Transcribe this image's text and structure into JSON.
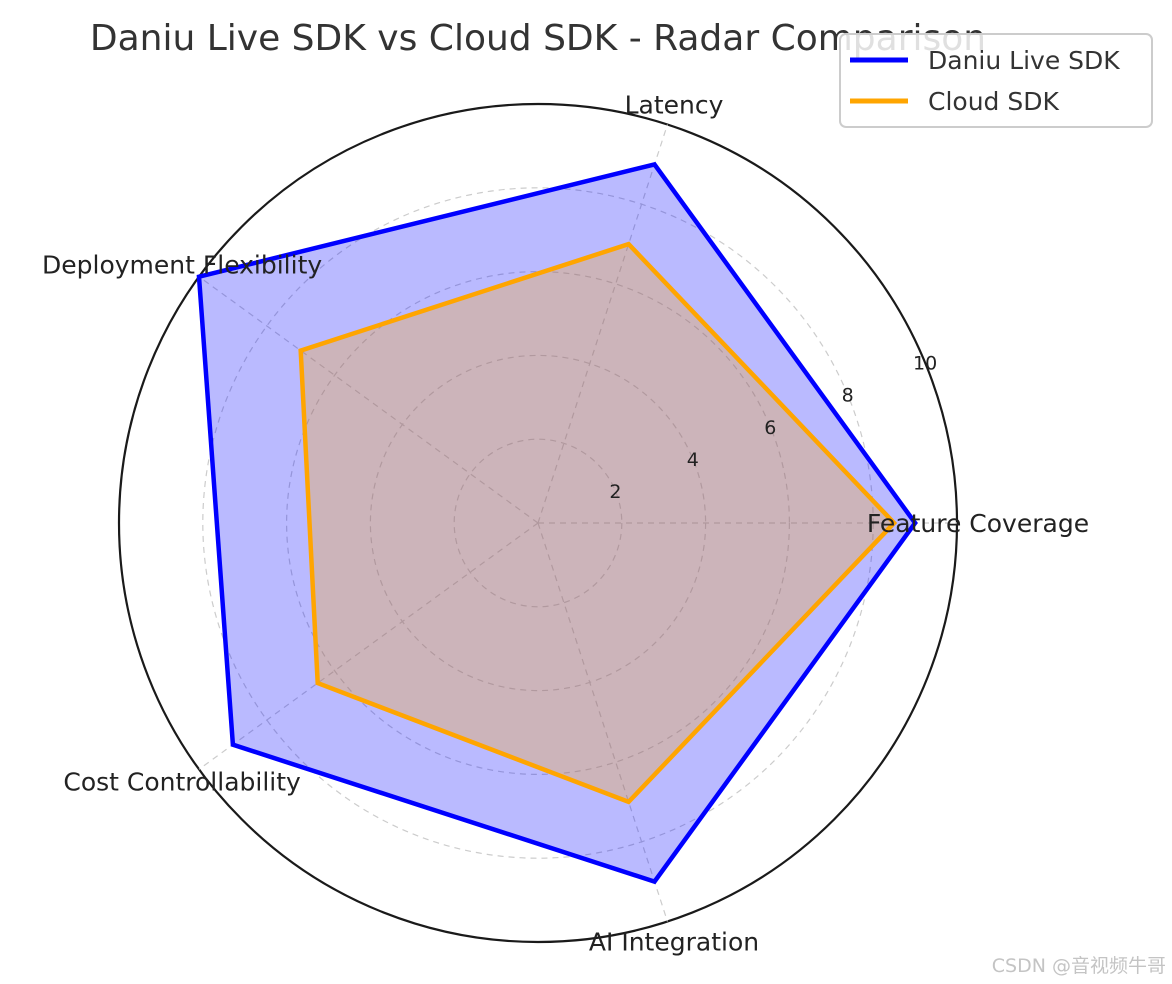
{
  "chart_data": {
    "type": "radar",
    "title": "Daniu Live SDK vs Cloud SDK - Radar Comparison",
    "axes": [
      "Feature Coverage",
      "Latency",
      "Deployment Flexibility",
      "Cost Controllability",
      "AI Integration"
    ],
    "rlim": [
      0,
      10
    ],
    "radial_ticks": [
      2,
      4,
      6,
      8,
      10
    ],
    "grid": true,
    "legend_position": "top-right",
    "series": [
      {
        "name": "Daniu Live SDK",
        "values": [
          9,
          9,
          10,
          9,
          9
        ],
        "color": "#0000ff",
        "fill": "#0000ff"
      },
      {
        "name": "Cloud SDK",
        "values": [
          8.5,
          7,
          7,
          6.5,
          7
        ],
        "color": "#ffa500",
        "fill": "#ffa500"
      }
    ]
  },
  "watermark": "CSDN @音视频牛哥"
}
